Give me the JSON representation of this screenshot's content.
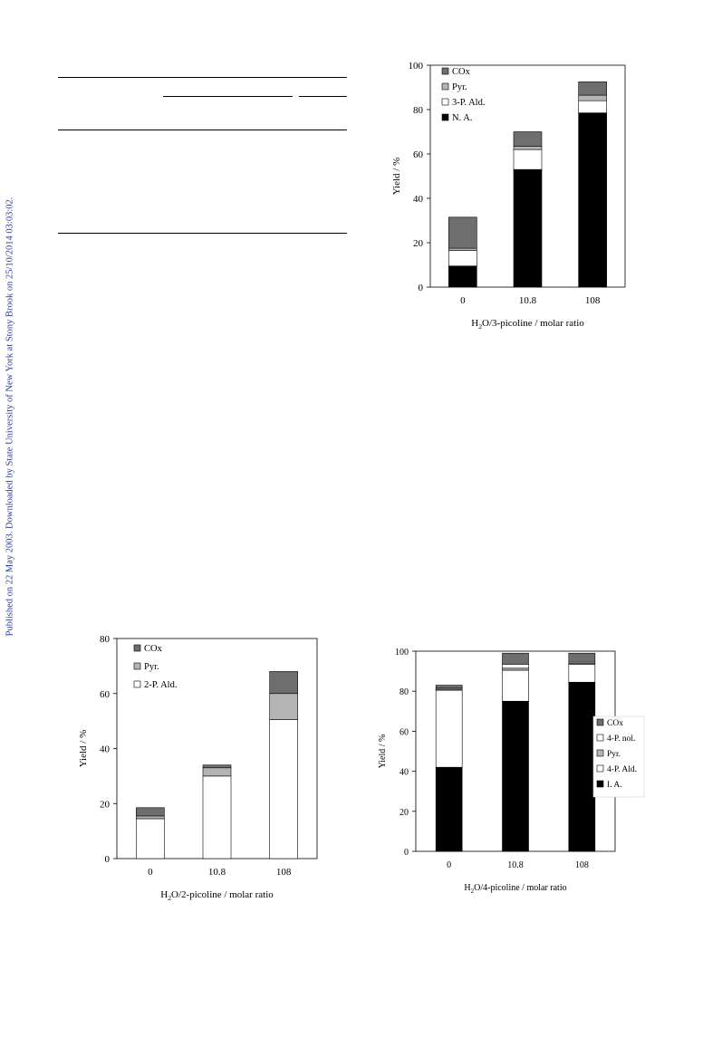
{
  "side_note": "Published on 22 May 2003. Downloaded by State University of New York at Stony Brook on 25/10/2014 03:03:02.",
  "colors": {
    "COx": "#6e6e6e",
    "Pyr.": "#b4b4b4",
    "open": "#ffffff",
    "acid": "#000000"
  },
  "chart_data": [
    {
      "id": "chart-3-picoline",
      "type": "bar",
      "stacked": true,
      "categories": [
        "0",
        "10.8",
        "108"
      ],
      "xlabel_sub": {
        "pre": "H",
        "sub": "2",
        "post": "O/3-picoline / molar ratio"
      },
      "ylabel": "Yield / %",
      "ylim": [
        0,
        100
      ],
      "yticks": [
        0,
        20,
        40,
        60,
        80,
        100
      ],
      "legend": "top-left",
      "series": [
        {
          "name": "N. A.",
          "color": "#000000",
          "values": [
            9.5,
            53,
            78.5
          ]
        },
        {
          "name": "3-P. Ald.",
          "color": "#ffffff",
          "values": [
            7,
            9,
            5.5
          ]
        },
        {
          "name": "Pyr.",
          "color": "#b4b4b4",
          "values": [
            1,
            1.5,
            2.5
          ]
        },
        {
          "name": "COx",
          "color": "#6e6e6e",
          "values": [
            14,
            6.5,
            6
          ]
        }
      ]
    },
    {
      "id": "chart-2-picoline",
      "type": "bar",
      "stacked": true,
      "categories": [
        "0",
        "10.8",
        "108"
      ],
      "xlabel_sub": {
        "pre": "H",
        "sub": "2",
        "post": "O/2-picoline / molar ratio"
      },
      "ylabel": "Yield / %",
      "ylim": [
        0,
        80
      ],
      "yticks": [
        0,
        20,
        40,
        60,
        80
      ],
      "legend": "top-left",
      "series": [
        {
          "name": "2-P. Ald.",
          "color": "#ffffff",
          "values": [
            14.5,
            30,
            50.5
          ]
        },
        {
          "name": "Pyr.",
          "color": "#b4b4b4",
          "values": [
            1,
            3,
            9.5
          ]
        },
        {
          "name": "COx",
          "color": "#6e6e6e",
          "values": [
            3,
            1,
            8
          ]
        }
      ]
    },
    {
      "id": "chart-4-picoline",
      "type": "bar",
      "stacked": true,
      "categories": [
        "0",
        "10.8",
        "108"
      ],
      "xlabel_sub": {
        "pre": "H",
        "sub": "2",
        "post": "O/4-picoline / molar ratio"
      },
      "ylabel": "Yield / %",
      "ylim": [
        0,
        100
      ],
      "yticks": [
        0,
        20,
        40,
        60,
        80,
        100
      ],
      "legend": "middle-right",
      "series": [
        {
          "name": "I. A.",
          "color": "#000000",
          "values": [
            42,
            75,
            84.5
          ]
        },
        {
          "name": "4-P. Ald.",
          "color": "#ffffff",
          "values": [
            38.5,
            15.5,
            9
          ]
        },
        {
          "name": "Pyr.",
          "color": "#b4b4b4",
          "values": [
            0.5,
            1,
            0.5
          ]
        },
        {
          "name": "4-P. nol.",
          "color": "#ffffff",
          "values": [
            0.5,
            2,
            0.5
          ]
        },
        {
          "name": "COx",
          "color": "#6e6e6e",
          "values": [
            1.5,
            5.5,
            4.5
          ]
        }
      ]
    }
  ]
}
